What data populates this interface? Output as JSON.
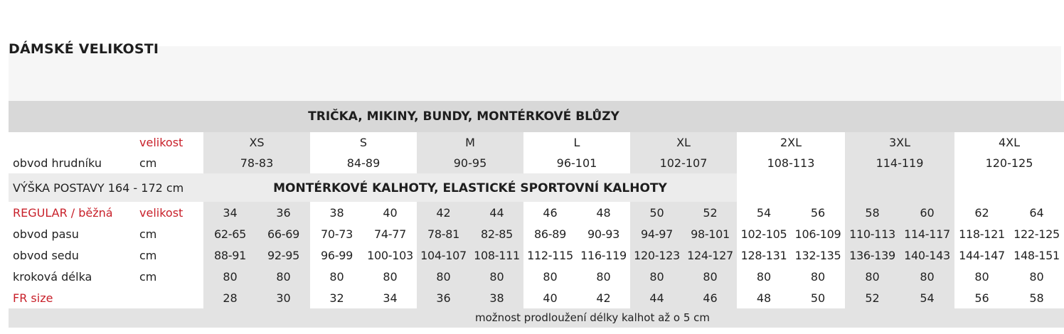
{
  "page_title": "DÁMSKÉ VELIKOSTI",
  "section1": {
    "title": "TRIČKA, MIKINY, BUNDY, MONTÉRKOVÉ BLŮZY",
    "size_row_label": "velikost",
    "sizes": [
      "XS",
      "S",
      "M",
      "L",
      "XL",
      "2XL",
      "3XL",
      "4XL"
    ],
    "chest_label": "obvod hrudníku",
    "chest_unit": "cm",
    "chest": [
      "78-83",
      "84-89",
      "90-95",
      "96-101",
      "102-107",
      "108-113",
      "114-119",
      "120-125"
    ]
  },
  "section2": {
    "height_label": "VÝŠKA POSTAVY 164 - 172 cm",
    "title": "MONTÉRKOVÉ KALHOTY, ELASTICKÉ SPORTOVNÍ KALHOTY",
    "regular_label": "REGULAR / běžná",
    "size_row_label": "velikost",
    "sizes": [
      "34",
      "36",
      "38",
      "40",
      "42",
      "44",
      "46",
      "48",
      "50",
      "52",
      "54",
      "56",
      "58",
      "60",
      "62",
      "64"
    ],
    "waist_label": "obvod pasu",
    "waist_unit": "cm",
    "waist": [
      "62-65",
      "66-69",
      "70-73",
      "74-77",
      "78-81",
      "82-85",
      "86-89",
      "90-93",
      "94-97",
      "98-101",
      "102-105",
      "106-109",
      "110-113",
      "114-117",
      "118-121",
      "122-125"
    ],
    "hip_label": "obvod sedu",
    "hip_unit": "cm",
    "hip": [
      "88-91",
      "92-95",
      "96-99",
      "100-103",
      "104-107",
      "108-111",
      "112-115",
      "116-119",
      "120-123",
      "124-127",
      "128-131",
      "132-135",
      "136-139",
      "140-143",
      "144-147",
      "148-151"
    ],
    "inseam_label": "kroková délka",
    "inseam_unit": "cm",
    "inseam": [
      "80",
      "80",
      "80",
      "80",
      "80",
      "80",
      "80",
      "80",
      "80",
      "80",
      "80",
      "80",
      "80",
      "80",
      "80",
      "80"
    ],
    "fr_label": "FR size",
    "fr": [
      "28",
      "30",
      "32",
      "34",
      "36",
      "38",
      "40",
      "42",
      "44",
      "46",
      "48",
      "50",
      "52",
      "54",
      "56",
      "58"
    ]
  },
  "footnote": "možnost prodloužení délky kalhot až o 5 cm"
}
